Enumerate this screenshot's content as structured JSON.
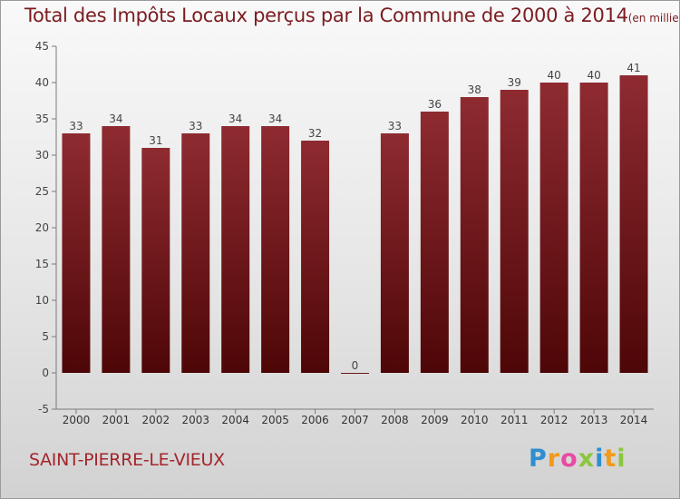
{
  "header": {
    "title": "Total des Impôts Locaux perçus par la Commune de 2000 à 2014",
    "unit": "(en milliers d'€)"
  },
  "commune": "SAINT-PIERRE-LE-VIEUX",
  "logo": {
    "text": "Proxiti",
    "letter_colors": [
      "#2f8ed0",
      "#f29a1a",
      "#e84aa4",
      "#8cc63e",
      "#2f8ed0",
      "#f29a1a",
      "#8cc63e"
    ]
  },
  "colors": {
    "bar": "#7a1a20",
    "title": "#7b1c20"
  },
  "chart_data": {
    "type": "bar",
    "title": "Total des Impôts Locaux perçus par la Commune de 2000 à 2014",
    "categories": [
      "2000",
      "2001",
      "2002",
      "2003",
      "2004",
      "2005",
      "2006",
      "2007",
      "2008",
      "2009",
      "2010",
      "2011",
      "2012",
      "2013",
      "2014"
    ],
    "values": [
      33,
      34,
      31,
      33,
      34,
      34,
      32,
      0,
      33,
      36,
      38,
      39,
      40,
      40,
      41
    ],
    "ylim": [
      -5,
      45
    ],
    "yticks": [
      -5,
      0,
      5,
      10,
      15,
      20,
      25,
      30,
      35,
      40,
      45
    ],
    "grid": false,
    "legend": "none"
  }
}
